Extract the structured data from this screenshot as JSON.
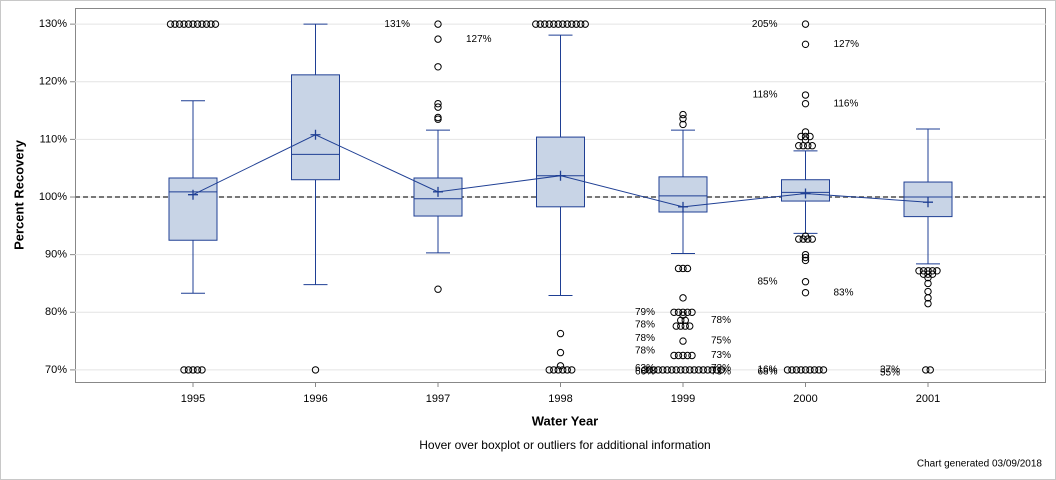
{
  "chart_data": {
    "type": "boxplot",
    "x_label": "Water Year",
    "y_label": "Percent Recovery",
    "footer": "Hover over boxplot or outliers for additional information",
    "generated": "Chart generated 03/09/2018",
    "categories": [
      "1995",
      "1996",
      "1997",
      "1998",
      "1999",
      "2000",
      "2001"
    ],
    "ylim": [
      67.9,
      132.8
    ],
    "yticks": [
      {
        "value": 70,
        "label": "70%"
      },
      {
        "value": 80,
        "label": "80%"
      },
      {
        "value": 90,
        "label": "90%"
      },
      {
        "value": 100,
        "label": "100%"
      },
      {
        "value": 110,
        "label": "110%"
      },
      {
        "value": 120,
        "label": "120%"
      },
      {
        "value": 130,
        "label": "130%"
      }
    ],
    "reference_line": 100,
    "grid": true,
    "box_color": "#c8d4e6",
    "line_color": "#1f3f94",
    "boxes": [
      {
        "whisker_low": 83.3,
        "q1": 92.5,
        "median": 100.9,
        "q3": 103.3,
        "whisker_high": 116.7,
        "mean": 100.4,
        "outliers": [
          130,
          130,
          130,
          130,
          130,
          130,
          130,
          130,
          130,
          130,
          130,
          70,
          70,
          70,
          70,
          70
        ]
      },
      {
        "whisker_low": 84.8,
        "q1": 103,
        "median": 107.4,
        "q3": 121.2,
        "whisker_high": 130,
        "mean": 110.8,
        "outliers": [
          70
        ]
      },
      {
        "whisker_low": 90.3,
        "q1": 96.7,
        "median": 99.7,
        "q3": 103.3,
        "whisker_high": 111.6,
        "mean": 100.9,
        "outliers": [
          130,
          127.4,
          122.6,
          116.2,
          115.6,
          113.8,
          113.5,
          84
        ]
      },
      {
        "whisker_low": 82.9,
        "q1": 98.3,
        "median": 103.7,
        "q3": 110.4,
        "whisker_high": 128.1,
        "mean": 103.7,
        "outliers": [
          130,
          130,
          130,
          130,
          130,
          130,
          130,
          130,
          130,
          130,
          130,
          130,
          76.3,
          73,
          70.7,
          70,
          70,
          70,
          70,
          70,
          70
        ]
      },
      {
        "whisker_low": 90.2,
        "q1": 97.4,
        "median": 100.2,
        "q3": 103.5,
        "whisker_high": 111.6,
        "mean": 98.3,
        "outliers": [
          114.3,
          113.6,
          112.6,
          87.6,
          87.6,
          87.6,
          82.5,
          80,
          80,
          80,
          80,
          80,
          79.5,
          78.6,
          78.6,
          77.6,
          77.6,
          77.6,
          77.6,
          75,
          72.5,
          72.5,
          72.5,
          72.5,
          72.5,
          70,
          70,
          70,
          70,
          70,
          70,
          70,
          70,
          70,
          70,
          70,
          70,
          70,
          70,
          70,
          70,
          70,
          70
        ]
      },
      {
        "whisker_low": 93.7,
        "q1": 99.3,
        "median": 100.8,
        "q3": 103,
        "whisker_high": 108,
        "mean": 100.6,
        "outliers": [
          130,
          126.5,
          117.7,
          116.2,
          111.3,
          110.5,
          110.5,
          110.5,
          109.9,
          108.9,
          108.9,
          108.9,
          108.9,
          93.2,
          92.7,
          92.7,
          92.7,
          92.7,
          90,
          89.5,
          89,
          85.3,
          83.4,
          70,
          70,
          70,
          70,
          70,
          70,
          70,
          70,
          70
        ]
      },
      {
        "whisker_low": 88.4,
        "q1": 96.6,
        "median": 100,
        "q3": 102.6,
        "whisker_high": 111.8,
        "mean": 99.1,
        "outliers": [
          87.2,
          87.2,
          87.2,
          87.2,
          87.2,
          86.6,
          86.6,
          86.6,
          86,
          85,
          83.6,
          82.5,
          81.5,
          70,
          70
        ]
      }
    ],
    "annotations": [
      {
        "category": 2,
        "text": "131%",
        "y": 130,
        "side": "left"
      },
      {
        "category": 2,
        "text": "127%",
        "y": 127.4,
        "side": "right"
      },
      {
        "category": 4,
        "text": "79%",
        "y": 80,
        "side": "left"
      },
      {
        "category": 4,
        "text": "78%",
        "y": 77.8,
        "side": "left"
      },
      {
        "category": 4,
        "text": "78%",
        "y": 75.5,
        "side": "left"
      },
      {
        "category": 4,
        "text": "78%",
        "y": 73.3,
        "side": "left"
      },
      {
        "category": 4,
        "text": "63%",
        "y": 70.3,
        "side": "left"
      },
      {
        "category": 4,
        "text": "66%",
        "y": 69.7,
        "side": "left"
      },
      {
        "category": 4,
        "text": "78%",
        "y": 78.6,
        "side": "right"
      },
      {
        "category": 4,
        "text": "75%",
        "y": 75,
        "side": "right"
      },
      {
        "category": 4,
        "text": "73%",
        "y": 72.5,
        "side": "right"
      },
      {
        "category": 4,
        "text": "73%",
        "y": 70.3,
        "side": "right"
      },
      {
        "category": 4,
        "text": "73%",
        "y": 69.7,
        "side": "right"
      },
      {
        "category": 5,
        "text": "205%",
        "y": 130,
        "side": "left"
      },
      {
        "category": 5,
        "text": "127%",
        "y": 126.5,
        "side": "right"
      },
      {
        "category": 5,
        "text": "118%",
        "y": 117.7,
        "side": "left"
      },
      {
        "category": 5,
        "text": "116%",
        "y": 116.2,
        "side": "right"
      },
      {
        "category": 5,
        "text": "85%",
        "y": 85.3,
        "side": "left"
      },
      {
        "category": 5,
        "text": "83%",
        "y": 83.4,
        "side": "right"
      },
      {
        "category": 5,
        "text": "16%",
        "y": 70,
        "side": "left"
      },
      {
        "category": 5,
        "text": "68%",
        "y": 69.7,
        "side": "left"
      },
      {
        "category": 6,
        "text": "37%",
        "y": 70,
        "side": "left"
      },
      {
        "category": 6,
        "text": "55%",
        "y": 69.5,
        "side": "left"
      }
    ]
  }
}
